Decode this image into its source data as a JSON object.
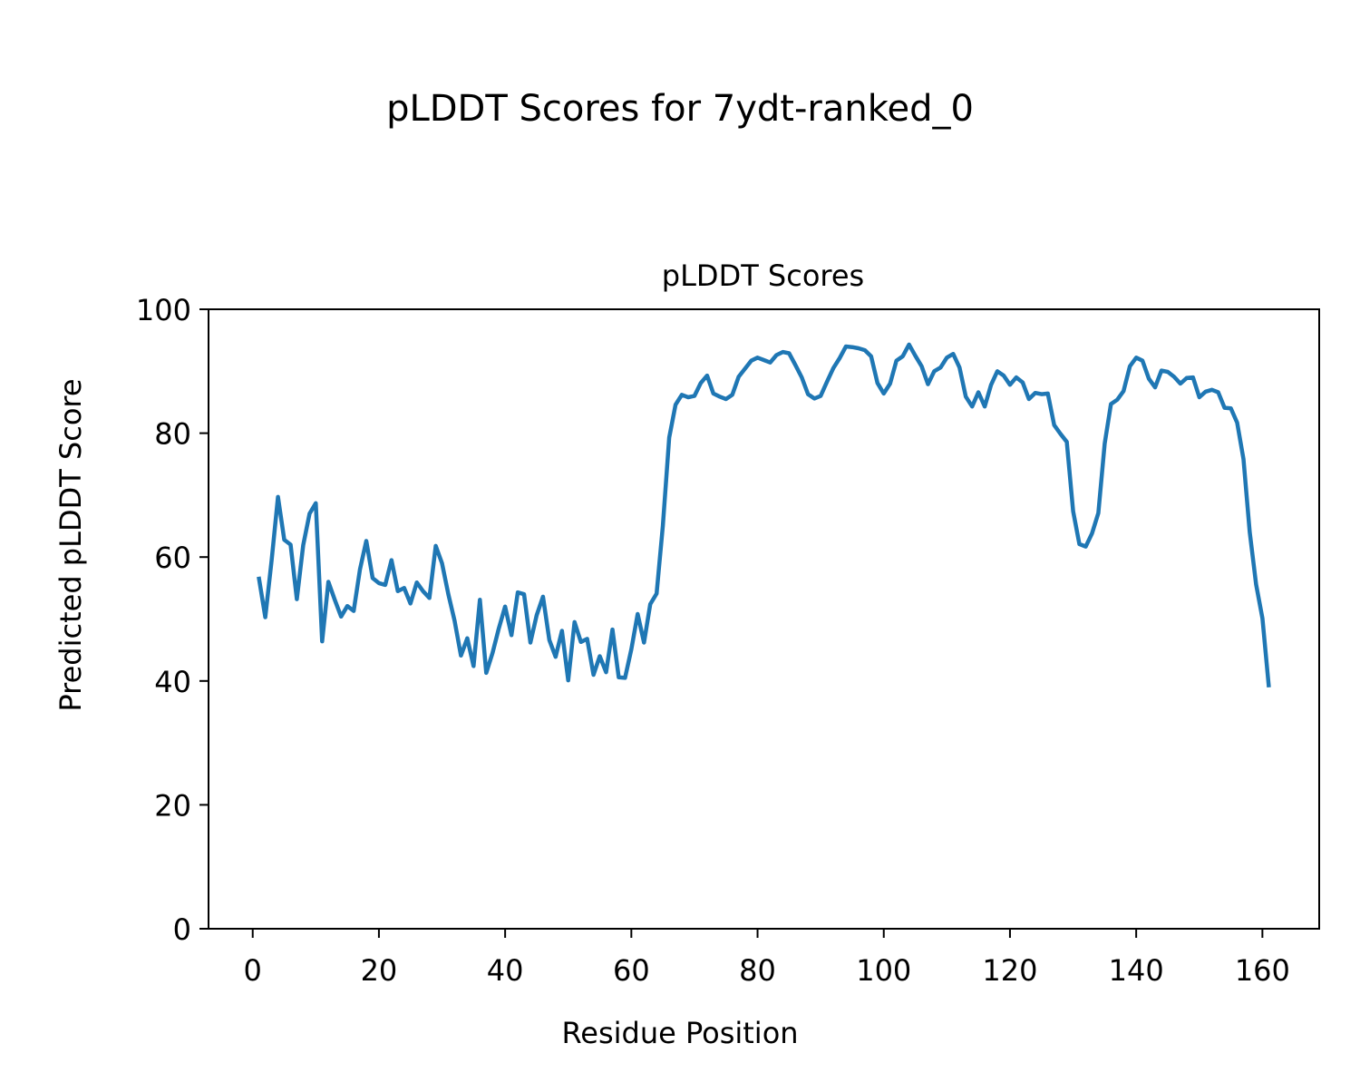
{
  "figure": {
    "suptitle": "pLDDT Scores for 7ydt-ranked_0"
  },
  "chart_data": {
    "type": "line",
    "title": "pLDDT Scores",
    "xlabel": "Residue Position",
    "ylabel": "Predicted pLDDT Score",
    "xlim": [
      -7,
      169
    ],
    "ylim": [
      0,
      100
    ],
    "xticks": [
      0,
      20,
      40,
      60,
      80,
      100,
      120,
      140,
      160
    ],
    "yticks": [
      0,
      20,
      40,
      60,
      80,
      100
    ],
    "grid": false,
    "line_color": "#1f77b4",
    "series": [
      {
        "x": [
          1,
          2,
          3,
          4,
          5,
          6,
          7,
          8,
          9,
          10,
          11,
          12,
          13,
          14,
          15,
          16,
          17,
          18,
          19,
          20,
          21,
          22,
          23,
          24,
          25,
          26,
          27,
          28,
          29,
          30,
          31,
          32,
          33,
          34,
          35,
          36,
          37,
          38,
          39,
          40,
          41,
          42,
          43,
          44,
          45,
          46,
          47,
          48,
          49,
          50,
          51,
          52,
          53,
          54,
          55,
          56,
          57,
          58,
          59,
          60,
          61,
          62,
          63,
          64,
          65,
          66,
          67,
          68,
          69,
          70,
          71,
          72,
          73,
          74,
          75,
          76,
          77,
          78,
          79,
          80,
          81,
          82,
          83,
          84,
          85,
          86,
          87,
          88,
          89,
          90,
          91,
          92,
          93,
          94,
          95,
          96,
          97,
          98,
          99,
          100,
          101,
          102,
          103,
          104,
          105,
          106,
          107,
          108,
          109,
          110,
          111,
          112,
          113,
          114,
          115,
          116,
          117,
          118,
          119,
          120,
          121,
          122,
          123,
          124,
          125,
          126,
          127,
          128,
          129,
          130,
          131,
          132,
          133,
          134,
          135,
          136,
          137,
          138,
          139,
          140,
          141,
          142,
          143,
          144,
          145,
          146,
          147,
          148,
          149,
          150,
          151,
          152,
          153,
          154,
          155,
          156,
          157,
          158,
          159,
          160,
          161
        ],
        "values": [
          56.5,
          50.3,
          59.5,
          69.7,
          62.8,
          62.0,
          53.2,
          61.9,
          67.0,
          68.7,
          46.4,
          56.0,
          53.1,
          50.4,
          52.1,
          51.3,
          58.0,
          62.6,
          56.6,
          55.8,
          55.5,
          59.5,
          54.5,
          55.0,
          52.5,
          55.9,
          54.5,
          53.4,
          61.8,
          59.0,
          54.0,
          49.7,
          44.1,
          46.9,
          42.4,
          53.1,
          41.3,
          44.5,
          48.5,
          52.0,
          47.4,
          54.3,
          54.0,
          46.2,
          50.6,
          53.6,
          46.6,
          43.9,
          48.1,
          40.1,
          49.5,
          46.3,
          46.8,
          41.0,
          44.0,
          41.4,
          48.3,
          40.6,
          40.5,
          45.1,
          50.8,
          46.2,
          52.4,
          54.1,
          65.1,
          79.3,
          84.6,
          86.2,
          85.8,
          86.0,
          88.1,
          89.3,
          86.4,
          85.9,
          85.5,
          86.2,
          89.1,
          90.4,
          91.7,
          92.2,
          91.8,
          91.4,
          92.6,
          93.1,
          92.9,
          91.0,
          89.0,
          86.3,
          85.6,
          86.0,
          88.3,
          90.5,
          92.1,
          94.0,
          93.9,
          93.7,
          93.4,
          92.4,
          88.1,
          86.4,
          88.0,
          91.7,
          92.4,
          94.3,
          92.5,
          90.8,
          87.9,
          90.0,
          90.6,
          92.2,
          92.8,
          90.6,
          85.9,
          84.3,
          86.6,
          84.3,
          87.8,
          90.0,
          89.3,
          87.8,
          89.0,
          88.2,
          85.5,
          86.5,
          86.3,
          86.4,
          81.3,
          79.9,
          78.6,
          67.4,
          62.1,
          61.7,
          63.8,
          67.1,
          78.3,
          84.7,
          85.4,
          86.8,
          90.8,
          92.2,
          91.7,
          88.8,
          87.4,
          90.1,
          89.9,
          89.1,
          88.0,
          88.9,
          89.0,
          85.8,
          86.7,
          87.0,
          86.6,
          84.1,
          84.0,
          81.7,
          75.8,
          64.0,
          55.6,
          50.1,
          39.3
        ]
      }
    ]
  }
}
